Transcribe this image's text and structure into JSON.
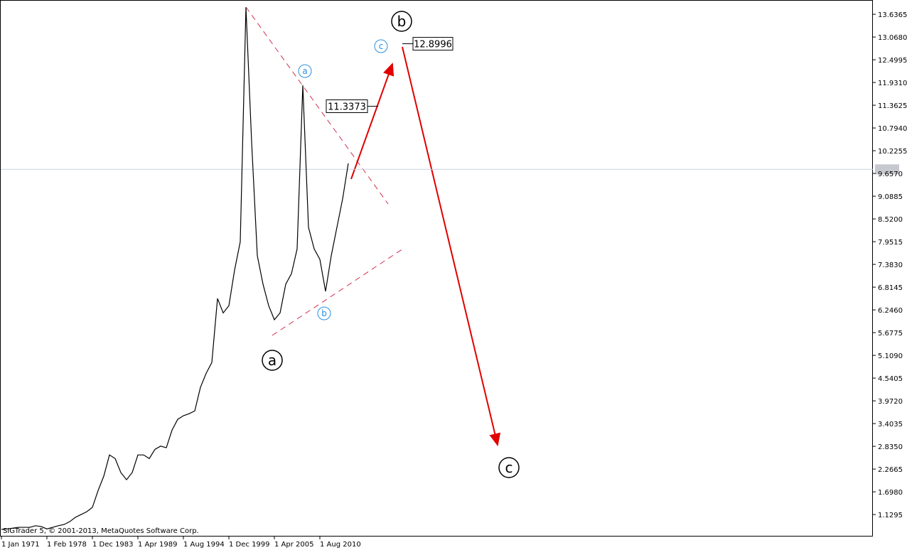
{
  "chart_data": {
    "type": "line",
    "color": "#000000",
    "values": [
      0.76,
      0.77,
      0.79,
      0.81,
      0.81,
      0.81,
      0.85,
      0.83,
      0.77,
      0.81,
      0.85,
      0.88,
      0.95,
      1.06,
      1.13,
      1.2,
      1.31,
      1.73,
      2.09,
      2.62,
      2.53,
      2.18,
      2.0,
      2.18,
      2.62,
      2.62,
      2.53,
      2.76,
      2.84,
      2.8,
      3.24,
      3.51,
      3.6,
      3.65,
      3.72,
      4.31,
      4.66,
      4.93,
      6.53,
      6.17,
      6.35,
      7.24,
      7.95,
      13.81,
      10.44,
      7.6,
      6.89,
      6.35,
      6.0,
      6.17,
      6.89,
      7.15,
      7.77,
      11.86,
      8.31,
      7.77,
      7.51,
      6.71,
      7.6,
      8.31,
      9.02,
      9.91
    ],
    "categories": [
      "1 Jan 1971",
      null,
      null,
      null,
      null,
      null,
      null,
      null,
      "1 Feb 1978",
      null,
      null,
      null,
      null,
      null,
      null,
      null,
      "1 Dec 1983",
      null,
      null,
      null,
      null,
      null,
      null,
      null,
      "1 Apr 1989",
      null,
      null,
      null,
      null,
      null,
      null,
      null,
      "1 Aug 1994",
      null,
      null,
      null,
      null,
      null,
      null,
      null,
      "1 Dec 1999",
      null,
      null,
      null,
      null,
      null,
      null,
      null,
      "1 Apr 2005",
      null,
      null,
      null,
      null,
      null,
      null,
      null,
      "1 Aug 2010",
      null,
      null,
      null,
      null,
      null
    ],
    "ylim": [
      0.58,
      13.94
    ],
    "yticks": [
      1.1295,
      {
        "value": 1.698,
        "label": "1.6980"
      },
      2.2665,
      {
        "value": 2.835,
        "label": "2.8350"
      },
      3.4035,
      {
        "value": 3.972,
        "label": "3.9720"
      },
      4.5405,
      {
        "value": 5.109,
        "label": "5.1090"
      },
      5.6775,
      {
        "value": 6.246,
        "label": "6.2460"
      },
      6.8145,
      {
        "value": 7.383,
        "label": "7.3830"
      },
      7.9515,
      {
        "value": 8.52,
        "label": "8.5200"
      },
      9.0885,
      {
        "value": 9.657,
        "label": "9.6570"
      },
      10.2255,
      {
        "value": 10.794,
        "label": "10.7940"
      },
      11.3625,
      {
        "value": 11.931,
        "label": "11.9310"
      },
      12.4995,
      {
        "value": 13.068,
        "label": "13.0680"
      },
      13.6365
    ],
    "current_price": 9.76,
    "price_annotations": [
      {
        "value": 11.3373,
        "label": "11.3373"
      },
      {
        "value": 12.8996,
        "label": "12.8996"
      }
    ],
    "waves": {
      "major": [
        "a",
        "b",
        "c"
      ],
      "minor": [
        "a",
        "b",
        "c"
      ]
    },
    "copyright": "SIGTrader 5, © 2001-2013, MetaQuotes Software Corp."
  }
}
